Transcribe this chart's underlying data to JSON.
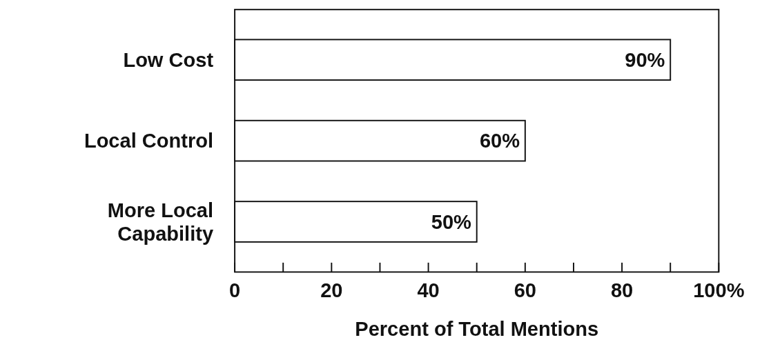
{
  "chart_data": {
    "type": "bar",
    "orientation": "horizontal",
    "categories": [
      "Low Cost",
      "Local Control",
      "More Local Capability"
    ],
    "values": [
      90,
      60,
      50
    ],
    "color": "#ffffff",
    "value_labels": [
      "90%",
      "60%",
      "50%"
    ],
    "xlim": [
      0,
      100
    ],
    "xticks": [
      0,
      {
        "value": 10,
        "label": null
      },
      20,
      {
        "value": 30,
        "label": null
      },
      40,
      {
        "value": 50,
        "label": null
      },
      60,
      {
        "value": 70,
        "label": null
      },
      80,
      {
        "value": 90,
        "label": null
      },
      {
        "value": 100,
        "label": "100%"
      }
    ],
    "xlabel": "Percent of Total Mentions"
  }
}
